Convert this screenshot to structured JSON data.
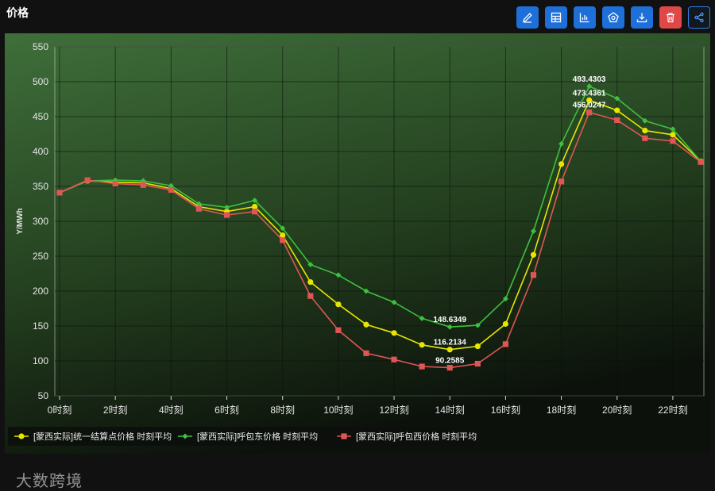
{
  "header": {
    "title": "价格"
  },
  "toolbar": {
    "buttons": [
      {
        "name": "edit-button",
        "icon": "pencil-icon"
      },
      {
        "name": "table-button",
        "icon": "table-icon"
      },
      {
        "name": "bar-chart-button",
        "icon": "bar-chart-icon"
      },
      {
        "name": "theme-button",
        "icon": "palette-icon"
      },
      {
        "name": "download-button",
        "icon": "download-icon"
      },
      {
        "name": "delete-button",
        "icon": "trash-icon"
      },
      {
        "name": "share-button",
        "icon": "share-icon"
      }
    ]
  },
  "watermark": "大数跨境",
  "chart_data": {
    "type": "line",
    "title": "",
    "ylabel": "Y/MWh",
    "xlabel": "",
    "ylim": [
      50,
      550
    ],
    "yticks": [
      50,
      100,
      150,
      200,
      250,
      300,
      350,
      400,
      450,
      500,
      550
    ],
    "x": [
      "0时刻",
      "1时刻",
      "2时刻",
      "3时刻",
      "4时刻",
      "5时刻",
      "6时刻",
      "7时刻",
      "8时刻",
      "9时刻",
      "10时刻",
      "11时刻",
      "12时刻",
      "13时刻",
      "14时刻",
      "15时刻",
      "16时刻",
      "17时刻",
      "18时刻",
      "19时刻",
      "20时刻",
      "21时刻",
      "22时刻",
      "23时刻"
    ],
    "xtick_labels": [
      "0时刻",
      "2时刻",
      "4时刻",
      "6时刻",
      "8时刻",
      "10时刻",
      "12时刻",
      "14时刻",
      "16时刻",
      "18时刻",
      "20时刻",
      "22时刻"
    ],
    "grid": true,
    "legend_position": "bottom-left",
    "series": [
      {
        "name": "[蒙西实际]统一结算点价格 时刻平均",
        "color": "#e6e600",
        "marker": "circle",
        "values": [
          341,
          358,
          356,
          355,
          347,
          321,
          314,
          321,
          280,
          213,
          181,
          152,
          140,
          123,
          116.2134,
          121,
          153,
          252,
          382,
          473.4361,
          459,
          430,
          424,
          386
        ],
        "labels": {
          "14": "116.2134",
          "19": "473.4361"
        }
      },
      {
        "name": "[蒙西实际]呼包东价格 时刻平均",
        "color": "#3fbf3f",
        "marker": "diamond",
        "values": [
          341,
          358,
          359,
          358,
          351,
          325,
          320,
          330,
          290,
          238,
          223,
          200,
          184,
          161,
          148.6349,
          151,
          189,
          286,
          411,
          493.4303,
          476,
          444,
          432,
          386
        ],
        "labels": {
          "14": "148.6349",
          "19": "493.4303"
        }
      },
      {
        "name": "[蒙西实际]呼包西价格 时刻平均",
        "color": "#e05555",
        "marker": "square",
        "values": [
          341,
          359,
          354,
          352,
          345,
          318,
          309,
          314,
          273,
          193,
          144,
          111,
          102,
          92,
          90.2585,
          96,
          124,
          223,
          357,
          456.0247,
          445,
          419,
          415,
          385
        ],
        "labels": {
          "14": "90.2585",
          "19": "456.0247"
        }
      }
    ]
  }
}
